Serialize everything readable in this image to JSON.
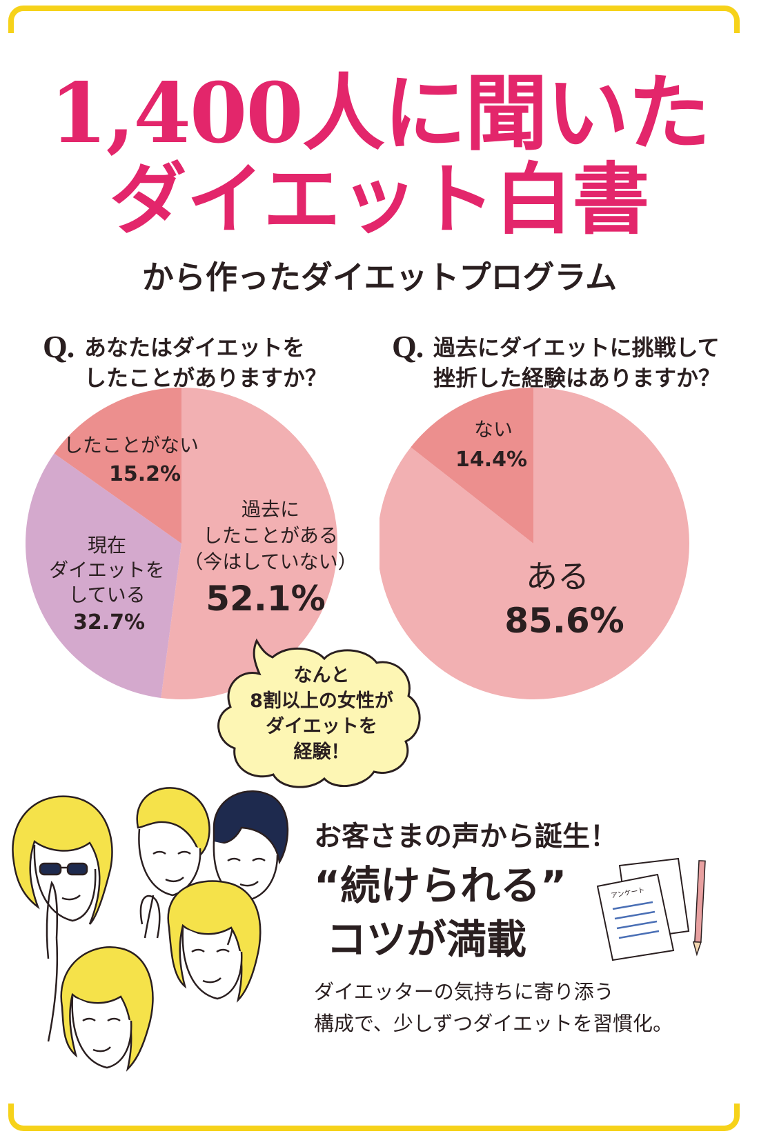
{
  "header": {
    "title_line1": "1,400人に聞いた",
    "title_line2": "ダイエット白書",
    "subtitle": "から作ったダイエットプログラム"
  },
  "colors": {
    "frame": "#f6d21a",
    "title": "#e3266b",
    "slice_light_pink": "#f2b0b2",
    "slice_dark_pink": "#ec8f8e",
    "slice_lavender": "#d4a9cd",
    "bubble_fill": "#fdf6b4",
    "hair_yellow": "#f5e24a",
    "hair_navy": "#1e2a4e"
  },
  "chart_data": [
    {
      "type": "pie",
      "question_mark": "Q.",
      "question_lines": [
        "あなたはダイエットを",
        "したことがありますか？"
      ],
      "slices": [
        {
          "label_lines": [
            "過去に",
            "したことがある",
            "（今はしていない）"
          ],
          "value": 52.1,
          "value_text": "52.1%",
          "color": "#f2b0b2"
        },
        {
          "label_lines": [
            "現在",
            "ダイエットを",
            "している"
          ],
          "value": 32.7,
          "value_text": "32.7%",
          "color": "#d4a9cd"
        },
        {
          "label_lines": [
            "したことがない"
          ],
          "value": 15.2,
          "value_text": "15.2%",
          "color": "#ec8f8e"
        }
      ]
    },
    {
      "type": "pie",
      "question_mark": "Q.",
      "question_lines": [
        "過去にダイエットに挑戦して",
        "挫折した経験はありますか？"
      ],
      "slices": [
        {
          "label_lines": [
            "ある"
          ],
          "value": 85.6,
          "value_text": "85.6%",
          "color": "#f2b0b2"
        },
        {
          "label_lines": [
            "ない"
          ],
          "value": 14.4,
          "value_text": "14.4%",
          "color": "#ec8f8e"
        }
      ]
    }
  ],
  "bubble": {
    "lines": [
      "なんと",
      "8割以上の女性が",
      "ダイエットを",
      "経験！"
    ]
  },
  "callout": {
    "line1": "お客さまの声から誕生！",
    "line2": "“続けられる”",
    "line3": "コツが満載",
    "body_line1": "ダイエッターの気持ちに寄り添う",
    "body_line2": "構成で、少しずつダイエットを習慣化。"
  },
  "illustration": {
    "paper_header": "アンケート"
  }
}
